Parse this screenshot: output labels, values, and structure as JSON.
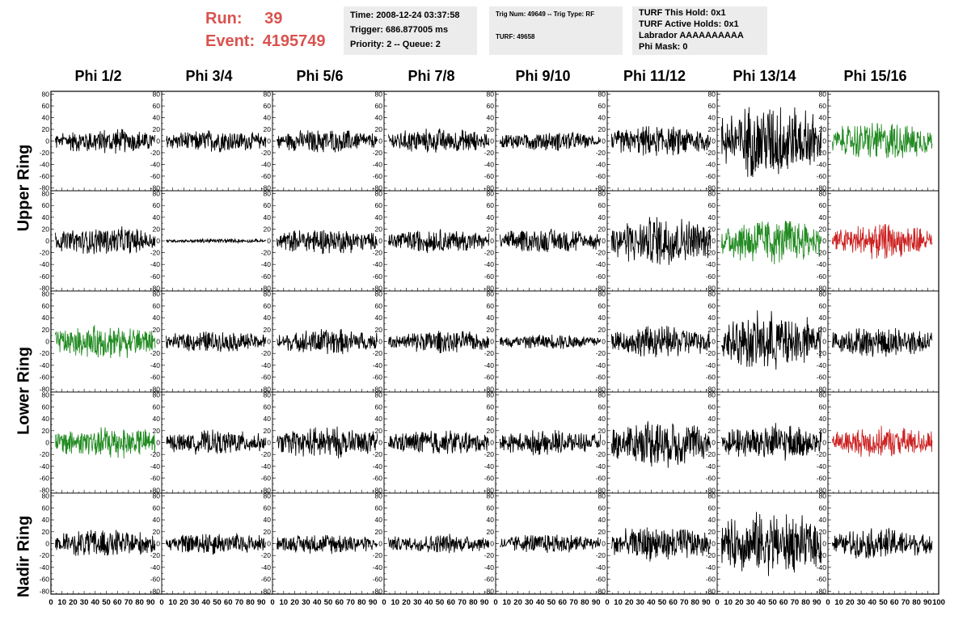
{
  "header": {
    "run_label": "Run:",
    "run_value": "39",
    "event_label": "Event:",
    "event_value": "4195749"
  },
  "info_box_1": {
    "time": "Time: 2008-12-24 03:37:58",
    "trigger": "Trigger: 686.877005 ms",
    "priority": "Priority: 2 -- Queue: 2"
  },
  "info_box_2": {
    "trig": "Trig Num: 49649 -- Trig Type: RF",
    "turf": "TURF: 49658"
  },
  "info_box_3": {
    "this_hold": "TURF This Hold: 0x1",
    "active_holds": "TURF Active Holds: 0x1",
    "labrador": "Labrador AAAAAAAAAA",
    "phi_mask": "Phi Mask: 0"
  },
  "ring_labels": [
    "Upper Ring",
    "Lower Ring",
    "Nadir Ring"
  ],
  "colors": {
    "black": "#000000",
    "green": "#228b22",
    "red": "#cc2222"
  },
  "chart_data": {
    "type": "line",
    "columns": [
      "Phi 1/2",
      "Phi 3/4",
      "Phi 5/6",
      "Phi 7/8",
      "Phi 9/10",
      "Phi 11/12",
      "Phi 13/14",
      "Phi 15/16"
    ],
    "xlim": [
      0,
      100
    ],
    "ylim": [
      -85,
      85
    ],
    "x_ticks": [
      0,
      10,
      20,
      30,
      40,
      50,
      60,
      70,
      80,
      90,
      100
    ],
    "y_ticks": [
      -80,
      -60,
      -40,
      -20,
      0,
      20,
      40,
      60,
      80
    ],
    "x_tick_labels": [
      "0",
      "10",
      "20",
      "30",
      "40",
      "50",
      "60",
      "70",
      "80",
      "90",
      "100"
    ],
    "rows": [
      {
        "ring": "Upper Ring",
        "channels": [
          {
            "color": "black",
            "amplitude": 18
          },
          {
            "color": "black",
            "amplitude": 16
          },
          {
            "color": "black",
            "amplitude": 17
          },
          {
            "color": "black",
            "amplitude": 18
          },
          {
            "color": "black",
            "amplitude": 14
          },
          {
            "color": "black",
            "amplitude": 22
          },
          {
            "color": "black",
            "amplitude": 55
          },
          {
            "color": "green",
            "amplitude": 28
          }
        ]
      },
      {
        "ring": "Upper Ring",
        "channels": [
          {
            "color": "black",
            "amplitude": 20
          },
          {
            "color": "black",
            "amplitude": 3
          },
          {
            "color": "black",
            "amplitude": 18
          },
          {
            "color": "black",
            "amplitude": 17
          },
          {
            "color": "black",
            "amplitude": 18
          },
          {
            "color": "black",
            "amplitude": 35
          },
          {
            "color": "green",
            "amplitude": 33
          },
          {
            "color": "red",
            "amplitude": 25
          }
        ]
      },
      {
        "ring": "Lower Ring",
        "channels": [
          {
            "color": "green",
            "amplitude": 24
          },
          {
            "color": "black",
            "amplitude": 15
          },
          {
            "color": "black",
            "amplitude": 18
          },
          {
            "color": "black",
            "amplitude": 16
          },
          {
            "color": "black",
            "amplitude": 11
          },
          {
            "color": "black",
            "amplitude": 22
          },
          {
            "color": "black",
            "amplitude": 42
          },
          {
            "color": "black",
            "amplitude": 22
          }
        ]
      },
      {
        "ring": "Lower Ring",
        "channels": [
          {
            "color": "green",
            "amplitude": 24
          },
          {
            "color": "black",
            "amplitude": 17
          },
          {
            "color": "black",
            "amplitude": 22
          },
          {
            "color": "black",
            "amplitude": 18
          },
          {
            "color": "black",
            "amplitude": 18
          },
          {
            "color": "black",
            "amplitude": 35
          },
          {
            "color": "black",
            "amplitude": 26
          },
          {
            "color": "red",
            "amplitude": 22
          }
        ]
      },
      {
        "ring": "Nadir Ring",
        "channels": [
          {
            "color": "black",
            "amplitude": 20
          },
          {
            "color": "black",
            "amplitude": 16
          },
          {
            "color": "black",
            "amplitude": 14
          },
          {
            "color": "black",
            "amplitude": 14
          },
          {
            "color": "black",
            "amplitude": 14
          },
          {
            "color": "black",
            "amplitude": 25
          },
          {
            "color": "black",
            "amplitude": 45
          },
          {
            "color": "black",
            "amplitude": 22
          }
        ]
      }
    ]
  }
}
